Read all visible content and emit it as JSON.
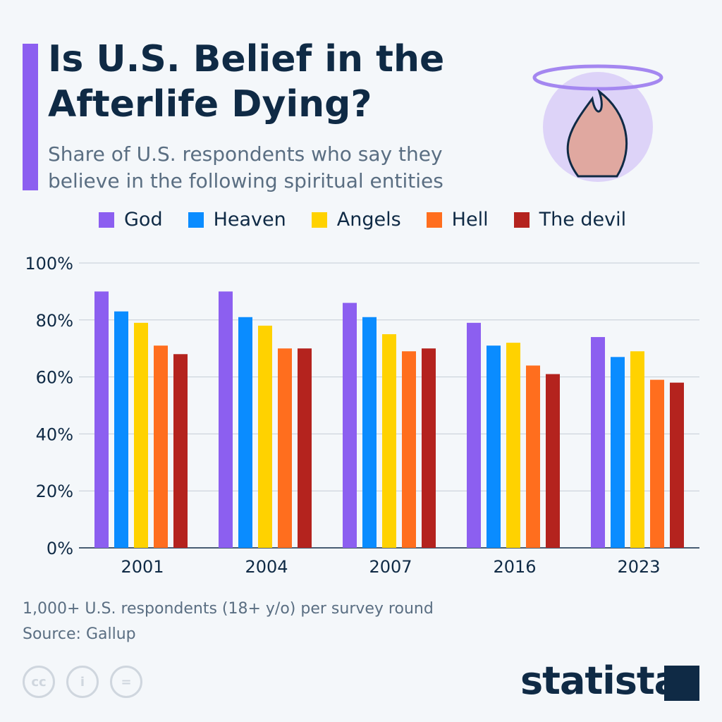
{
  "title": "Is U.S. Belief in the Afterlife Dying?",
  "subtitle": "Share of U.S. respondents who say they believe in the following spiritual entities",
  "note": "1,000+ U.S. respondents (18+ y/o) per survey round",
  "source": "Source: Gallup",
  "brand": "statista",
  "chart_data": {
    "type": "bar",
    "categories": [
      "2001",
      "2004",
      "2007",
      "2016",
      "2023"
    ],
    "series": [
      {
        "name": "God",
        "color": "#8c5ff0",
        "values": [
          90,
          90,
          86,
          79,
          74
        ]
      },
      {
        "name": "Heaven",
        "color": "#0a8cff",
        "values": [
          83,
          81,
          81,
          71,
          67
        ]
      },
      {
        "name": "Angels",
        "color": "#ffd200",
        "values": [
          79,
          78,
          75,
          72,
          69
        ]
      },
      {
        "name": "Hell",
        "color": "#ff6e1e",
        "values": [
          71,
          70,
          69,
          64,
          59
        ]
      },
      {
        "name": "The devil",
        "color": "#b4231e",
        "values": [
          68,
          70,
          70,
          61,
          58
        ]
      }
    ],
    "yticks": [
      "0%",
      "20%",
      "40%",
      "60%",
      "80%",
      "100%"
    ],
    "ylim": [
      0,
      100
    ],
    "grid": true,
    "legend": "top"
  }
}
